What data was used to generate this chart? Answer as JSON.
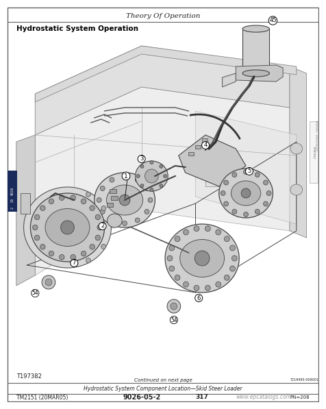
{
  "title_top": "Theory Of Operation",
  "title_section": "Hydrostatic System Operation",
  "caption": "Hydrostatic System Component Location—Skid Steer Loader",
  "caption2": "Continued on next page",
  "ref_code": "T219495-009001    -19-2336P05-1/6",
  "tag_id": "T197382",
  "doc_ref": "TM2151 (20MAR05)",
  "page_ref": "9026-05-2",
  "model_ref": "317",
  "watermark": "www.epcatalogs.com",
  "pn": "PN=208",
  "tab_text": "9026\n05\n2",
  "right_vert": "T19P302   4/N-6/16 R2",
  "bg_color": "#ffffff",
  "border_color": "#666666",
  "text_color": "#222222",
  "line_color": "#333333",
  "light_gray": "#d8d8d8",
  "mid_gray": "#b8b8b8",
  "dark_gray": "#888888",
  "tab_bg": "#1a2a5a"
}
